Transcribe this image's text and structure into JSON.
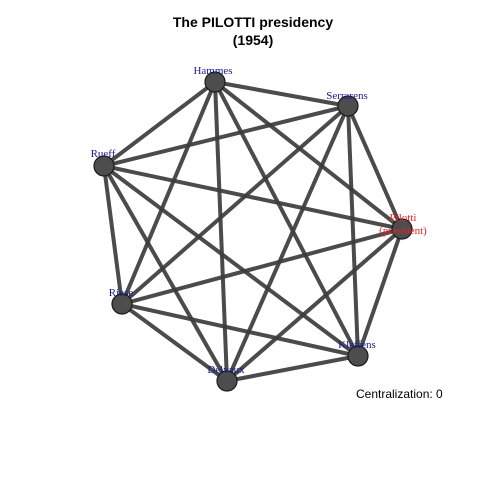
{
  "title_line1": "The PILOTTI presidency",
  "title_line2": "(1954)",
  "footer": "Centralization: 0",
  "colors": {
    "edge": "#3c3c3c",
    "node_fill": "#4d4d4d",
    "node_stroke": "#1a1a1a",
    "label_default": "#1a1a8c",
    "label_president": "#e8202a"
  },
  "nodes": [
    {
      "id": "hammes",
      "lines": [
        "Hammes"
      ],
      "president": false
    },
    {
      "id": "serrarens",
      "lines": [
        "Serrarens"
      ],
      "president": false
    },
    {
      "id": "rueff",
      "lines": [
        "Rueff"
      ],
      "president": false
    },
    {
      "id": "pilotti",
      "lines": [
        "Pilotti",
        "(president)"
      ],
      "president": true
    },
    {
      "id": "riese",
      "lines": [
        "Riese"
      ],
      "president": false
    },
    {
      "id": "kleffens",
      "lines": [
        "Kleffens"
      ],
      "president": false
    },
    {
      "id": "delvaux",
      "lines": [
        "Delvaux"
      ],
      "president": false
    }
  ],
  "edges": [
    [
      "hammes",
      "serrarens"
    ],
    [
      "hammes",
      "rueff"
    ],
    [
      "hammes",
      "pilotti"
    ],
    [
      "hammes",
      "riese"
    ],
    [
      "hammes",
      "kleffens"
    ],
    [
      "hammes",
      "delvaux"
    ],
    [
      "serrarens",
      "rueff"
    ],
    [
      "serrarens",
      "pilotti"
    ],
    [
      "serrarens",
      "riese"
    ],
    [
      "serrarens",
      "kleffens"
    ],
    [
      "serrarens",
      "delvaux"
    ],
    [
      "rueff",
      "pilotti"
    ],
    [
      "rueff",
      "riese"
    ],
    [
      "rueff",
      "kleffens"
    ],
    [
      "rueff",
      "delvaux"
    ],
    [
      "pilotti",
      "riese"
    ],
    [
      "pilotti",
      "kleffens"
    ],
    [
      "pilotti",
      "delvaux"
    ],
    [
      "riese",
      "kleffens"
    ],
    [
      "riese",
      "delvaux"
    ],
    [
      "kleffens",
      "delvaux"
    ]
  ]
}
